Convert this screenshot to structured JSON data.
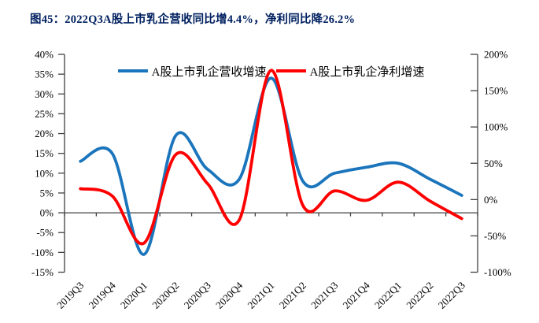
{
  "figure": {
    "title": "图45：2022Q3A股上市乳企营收同比增4.4%，净利同比降26.2%"
  },
  "colors": {
    "title": "#002060",
    "axis": "#404040",
    "background": "#ffffff"
  },
  "chart_data": {
    "type": "line",
    "smooth": true,
    "grid": false,
    "legend_position": "top-center",
    "categories": [
      "2019Q3",
      "2019Q4",
      "2020Q1",
      "2020Q2",
      "2020Q3",
      "2020Q4",
      "2021Q1",
      "2021Q2",
      "2021Q3",
      "2021Q4",
      "2022Q1",
      "2022Q2",
      "2022Q3"
    ],
    "series": [
      {
        "name": "A股上市乳企营收增速",
        "axis": "left",
        "color": "#1B75BC",
        "values": [
          13,
          15,
          -10.5,
          19.5,
          11,
          8.5,
          34,
          8,
          10,
          11.5,
          12.5,
          8.5,
          4.4
        ]
      },
      {
        "name": "A股上市乳企净利增速",
        "axis": "right",
        "color": "#FF0000",
        "values": [
          15,
          5,
          -60,
          62,
          22,
          -28,
          178,
          -8,
          12,
          -1,
          24,
          -2,
          -26.2
        ]
      }
    ],
    "left_axis": {
      "min": -15,
      "max": 40,
      "step": 5,
      "tick_labels": [
        "40%",
        "35%",
        "30%",
        "25%",
        "20%",
        "15%",
        "10%",
        "5%",
        "0%",
        "-5%",
        "-10%",
        "-15%"
      ]
    },
    "right_axis": {
      "min": -100,
      "max": 200,
      "step": 50,
      "tick_labels": [
        "200%",
        "150%",
        "100%",
        "50%",
        "0%",
        "-50%",
        "-100%"
      ]
    }
  }
}
